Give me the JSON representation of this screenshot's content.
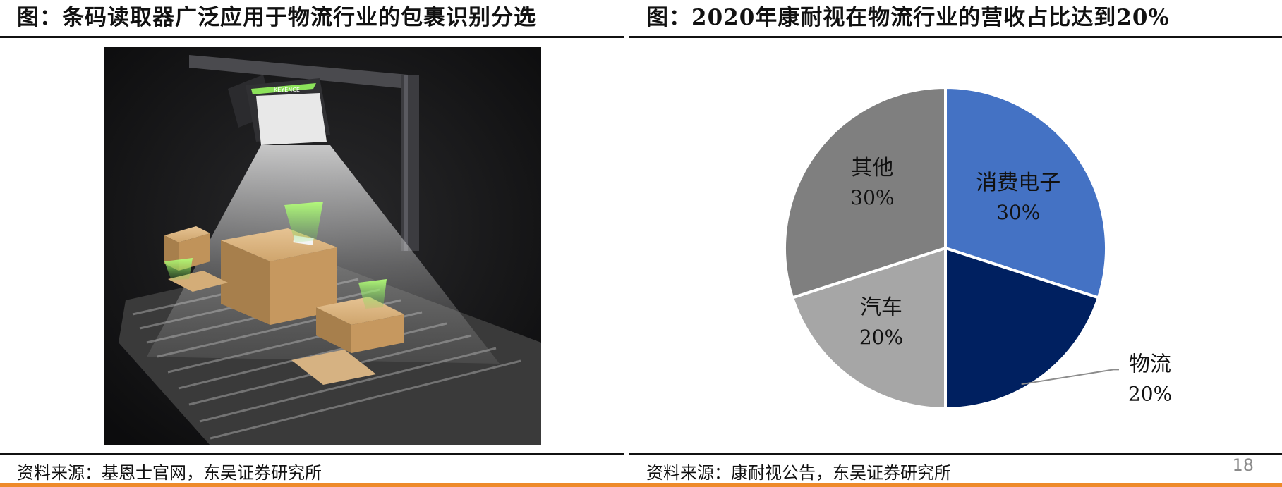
{
  "left_panel": {
    "title": "图：条码读取器广泛应用于物流行业的包裹识别分选",
    "source": "资料来源：基恩士官网，东吴证券研究所",
    "photo": {
      "kind": "barcode-reader-scanning-parcels-on-conveyor",
      "scanner_brand": "KEYENCE",
      "colors": {
        "background": "#151515",
        "scan_green": "#8cf05a",
        "box": "#c9a06a"
      }
    }
  },
  "right_panel": {
    "title": "图：2020年康耐视在物流行业的营收占比达到20%",
    "source": "资料来源：康耐视公告，东吴证券研究所"
  },
  "page_number": "18",
  "colors": {
    "accent_bar": "#ee8a2a"
  },
  "chart_data": {
    "type": "pie",
    "title": "",
    "slices": [
      {
        "label": "消费电子",
        "value": 30,
        "display": "30%",
        "color": "#4472c4"
      },
      {
        "label": "物流",
        "value": 20,
        "display": "20%",
        "color": "#002060"
      },
      {
        "label": "汽车",
        "value": 20,
        "display": "20%",
        "color": "#a6a6a6"
      },
      {
        "label": "其他",
        "value": 30,
        "display": "30%",
        "color": "#7f7f7f"
      }
    ],
    "start_angle": "12 o'clock",
    "direction": "clockwise",
    "legend": "none"
  }
}
